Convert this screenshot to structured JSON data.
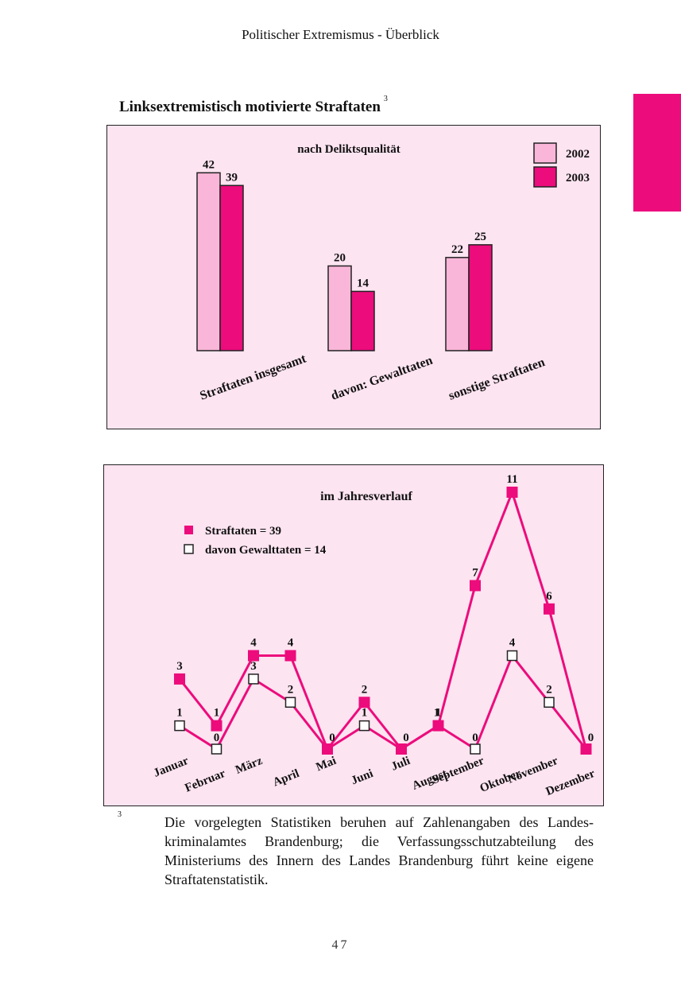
{
  "page": {
    "header": "Politischer Extremismus - Überblick",
    "section_title": "Linksextremistisch motivierte Straftaten",
    "section_title_note": "3",
    "footnote_mark": "3",
    "footnote_text": "Die vorgelegten Statistiken beruhen auf Zahlenangaben des Landes-kriminalamtes Brandenburg; die Verfassungsschutzabteilung des Ministeriums des Innern des Landes Brandenburg führt keine eigene Straftatenstatistik.",
    "page_number": "47"
  },
  "colors": {
    "accent": "#ec0c7c",
    "light_pink": "#f9b6d8",
    "panel_background": "#fde4f1",
    "border": "#222222"
  },
  "chart_data": [
    {
      "type": "bar",
      "title": "nach Deliktsqualität",
      "categories": [
        "Straftaten insgesamt",
        "davon: Gewalttaten",
        "sonstige Straftaten"
      ],
      "series": [
        {
          "name": "2002",
          "values": [
            42,
            20,
            22
          ],
          "color": "#f9b6d8"
        },
        {
          "name": "2003",
          "values": [
            39,
            14,
            25
          ],
          "color": "#ec0c7c"
        }
      ],
      "ylim": [
        0,
        46
      ],
      "legend": "top-right",
      "grid": false
    },
    {
      "type": "line",
      "title": "im Jahresverlauf",
      "categories": [
        "Januar",
        "Februar",
        "März",
        "April",
        "Mai",
        "Juni",
        "Juli",
        "August",
        "September",
        "Oktober",
        "November",
        "Dezember"
      ],
      "series": [
        {
          "name": "Straftaten = 39",
          "values": [
            3,
            1,
            4,
            4,
            0,
            2,
            0,
            1,
            7,
            11,
            6,
            0
          ],
          "color": "#ec0c7c",
          "marker": "filled-square"
        },
        {
          "name": "davon Gewalttaten = 14",
          "values": [
            1,
            0,
            3,
            2,
            0,
            1,
            0,
            1,
            0,
            4,
            2,
            0
          ],
          "color": "#ec0c7c",
          "marker": "hollow-square"
        }
      ],
      "ylim": [
        0,
        11
      ],
      "legend": "top-left",
      "grid": false
    }
  ]
}
